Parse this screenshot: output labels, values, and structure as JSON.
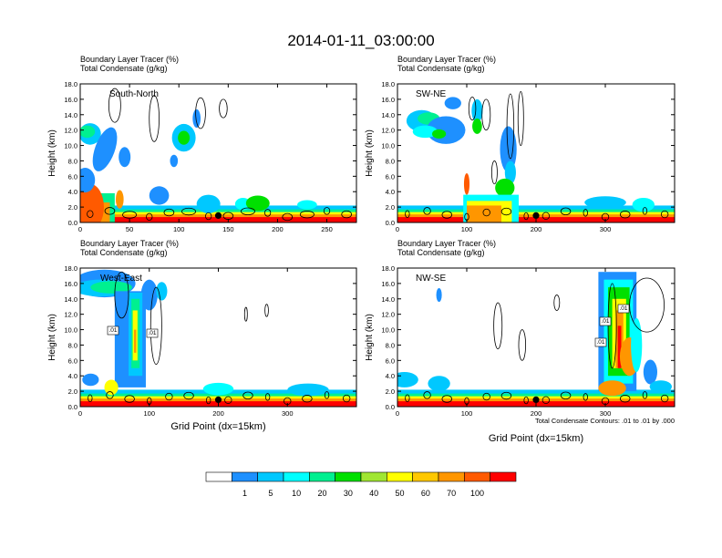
{
  "figure_title": "2014-01-11_03:00:00",
  "chart_data": [
    {
      "type": "heatmap",
      "panel": "South-North",
      "subtitle_lines": [
        "Boundary Layer Tracer   (%)",
        "Total Condensate   (g/kg)"
      ],
      "ylabel": "Height (km)",
      "xlabel": "",
      "xlim": [
        0,
        280
      ],
      "ylim": [
        0,
        18
      ],
      "xticks": [
        "0",
        "50",
        "100",
        "150",
        "200",
        "250"
      ],
      "yticks": [
        "0.0",
        "2.0",
        "4.0",
        "6.0",
        "8.0",
        "10.0",
        "12.0",
        "14.0",
        "16.0",
        "18.0"
      ],
      "marker_x": 140,
      "contour_labels": []
    },
    {
      "type": "heatmap",
      "panel": "SW-NE",
      "subtitle_lines": [
        "Boundary Layer Tracer   (%)",
        "Total Condensate   (g/kg)"
      ],
      "ylabel": "Height (km)",
      "xlabel": "",
      "xlim": [
        0,
        400
      ],
      "ylim": [
        0,
        18
      ],
      "xticks": [
        "0",
        "100",
        "200",
        "300"
      ],
      "yticks": [
        "0.0",
        "2.0",
        "4.0",
        "6.0",
        "8.0",
        "10.0",
        "12.0",
        "14.0",
        "16.0",
        "18.0"
      ],
      "marker_x": 200,
      "contour_labels": []
    },
    {
      "type": "heatmap",
      "panel": "West-East",
      "subtitle_lines": [
        "Boundary Layer Tracer   (%)",
        "Total Condensate   (g/kg)"
      ],
      "ylabel": "Height (km)",
      "xlabel": "Grid Point (dx=15km)",
      "xlim": [
        0,
        400
      ],
      "ylim": [
        0,
        18
      ],
      "xticks": [
        "0",
        "100",
        "200",
        "300"
      ],
      "yticks": [
        "0.0",
        "2.0",
        "4.0",
        "6.0",
        "8.0",
        "10.0",
        "12.0",
        "14.0",
        "16.0",
        "18.0"
      ],
      "marker_x": 200,
      "contour_labels": [
        ".01",
        ".01"
      ]
    },
    {
      "type": "heatmap",
      "panel": "NW-SE",
      "subtitle_lines": [
        "Boundary Layer Tracer   (%)",
        "Total Condensate   (g/kg)"
      ],
      "ylabel": "Height (km)",
      "xlabel": "Grid Point (dx=15km)",
      "xlim": [
        0,
        400
      ],
      "ylim": [
        0,
        18
      ],
      "xticks": [
        "0",
        "100",
        "200",
        "300"
      ],
      "yticks": [
        "0.0",
        "2.0",
        "4.0",
        "6.0",
        "8.0",
        "10.0",
        "12.0",
        "14.0",
        "16.0",
        "18.0"
      ],
      "marker_x": 200,
      "contour_labels": [
        ".01",
        ".01",
        ".01"
      ],
      "contour_note": "Total Condensate Contours: .01 to .01 by .000"
    }
  ],
  "colorbar": {
    "labels": [
      "1",
      "5",
      "10",
      "20",
      "30",
      "40",
      "50",
      "60",
      "70",
      "100"
    ],
    "colors": [
      "#ffffff",
      "#1e90ff",
      "#00c8ff",
      "#00ffff",
      "#00f090",
      "#00e000",
      "#a0e632",
      "#ffff00",
      "#ffc800",
      "#ff9600",
      "#ff5a00",
      "#ff0000"
    ]
  }
}
